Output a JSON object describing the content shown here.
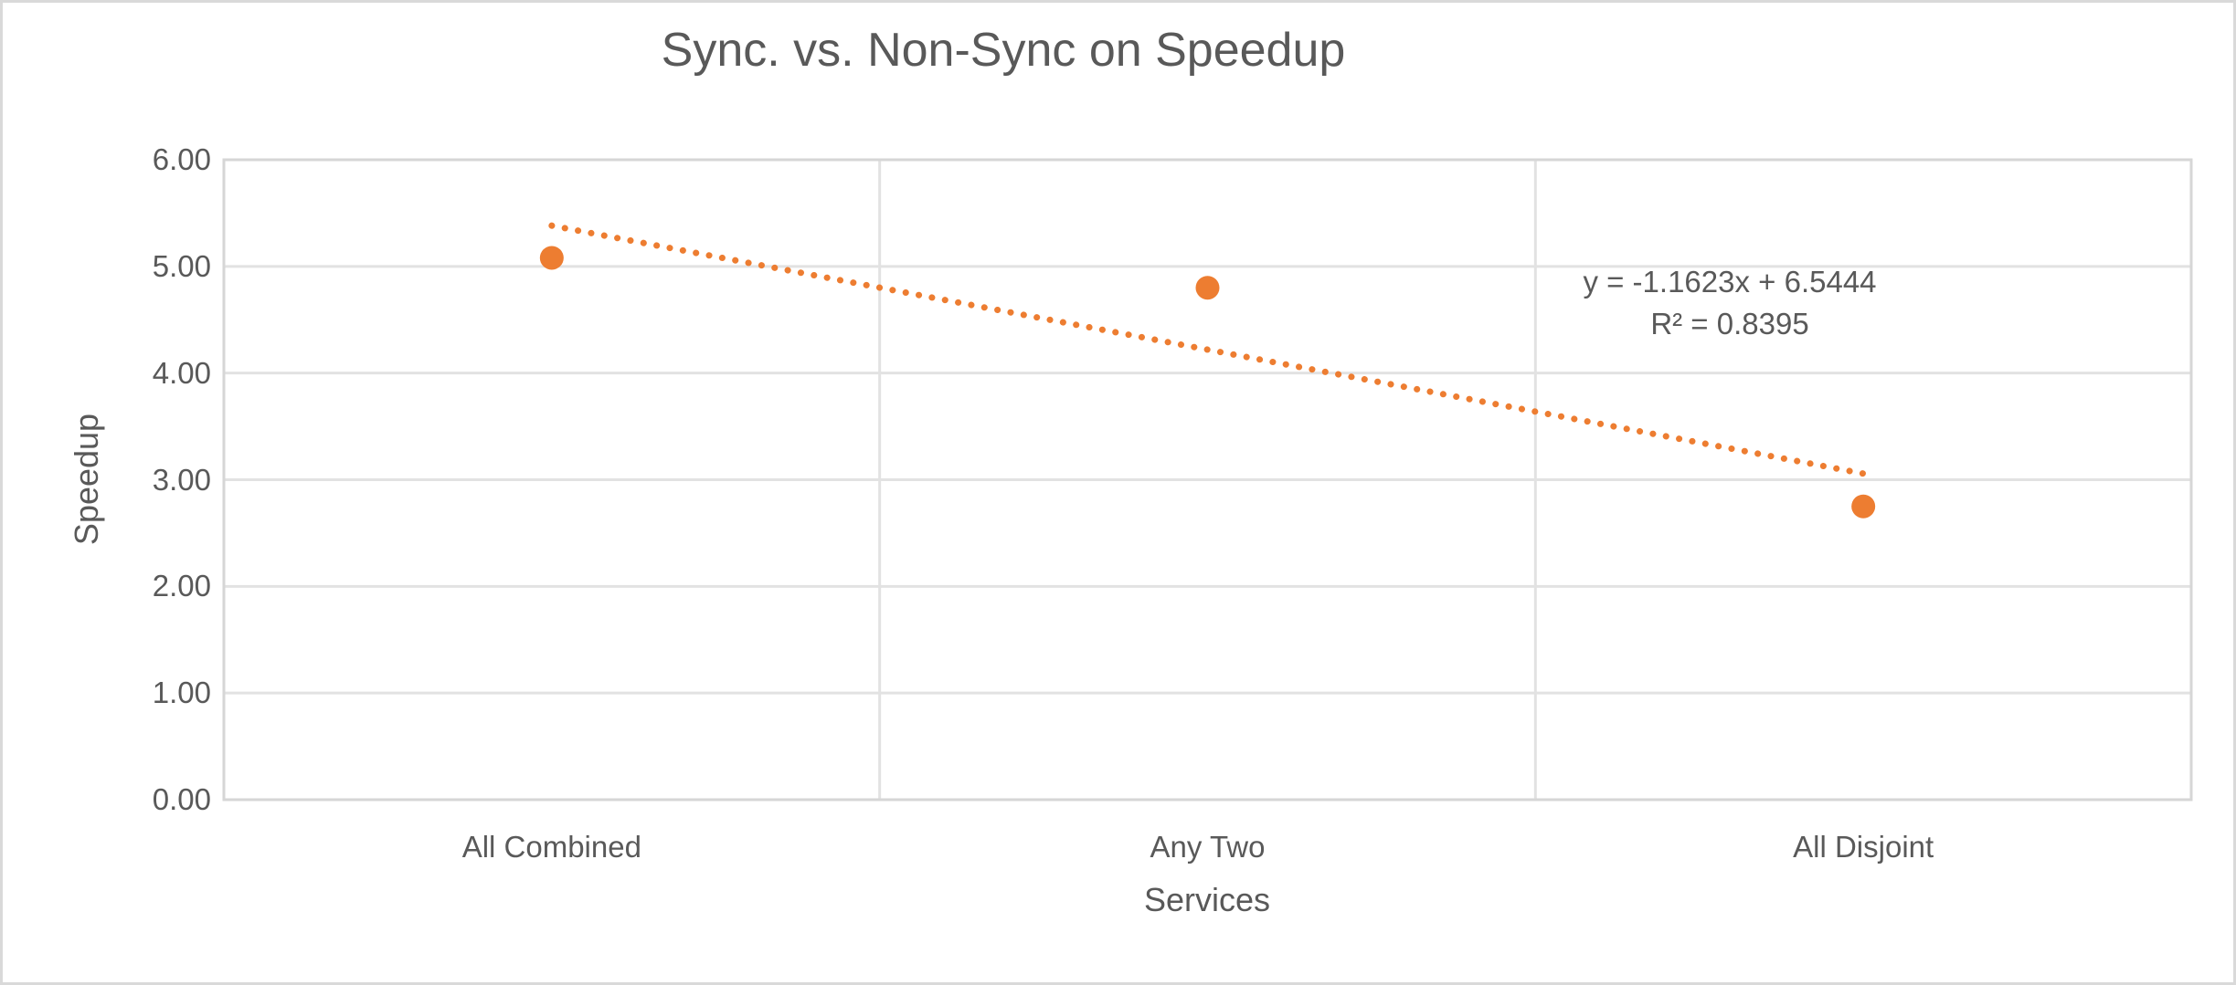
{
  "chart_data": {
    "type": "scatter",
    "title": "Sync. vs. Non-Sync on Speedup",
    "categories": [
      "All Combined",
      "Any Two",
      "All Disjoint"
    ],
    "x": [
      1,
      2,
      3
    ],
    "values": [
      5.08,
      4.8,
      2.75
    ],
    "series_name": "Speedup",
    "xlabel": "Services",
    "ylabel": "Speedup",
    "ylim": [
      0,
      6
    ],
    "y_tick_labels": [
      "6.00",
      "5.00",
      "4.00",
      "3.00",
      "2.00",
      "1.00",
      "0.00"
    ],
    "gridlines": true,
    "legend": "none",
    "marker_color": "#ED7D31",
    "trendline": {
      "type": "linear",
      "slope": -1.1623,
      "intercept": 6.5444,
      "r2": 0.8395,
      "equation_label": "y = -1.1623x + 6.5444",
      "r2_label": "R² = 0.8395",
      "style": "dotted",
      "color": "#ED7D31"
    }
  },
  "colors": {
    "text": "#595959",
    "gridline": "#E2E2E2",
    "plot_border": "#D6D6D6",
    "frame_border": "#D9D9D9",
    "background": "#FFFFFF"
  }
}
